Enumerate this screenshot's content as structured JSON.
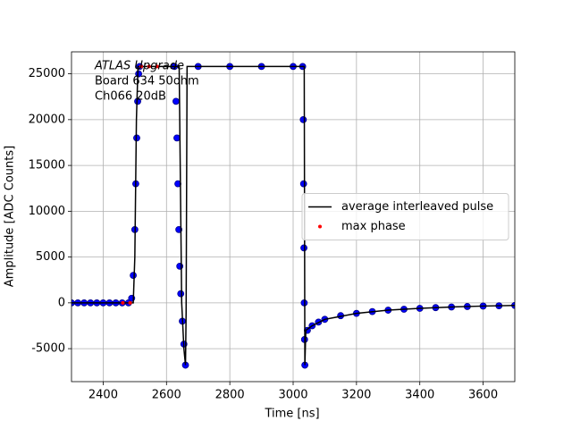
{
  "chart_data": {
    "type": "line",
    "annotation": [
      "ATLAS Upgrade",
      " Board 634 50ohm",
      " Ch066 20dB"
    ],
    "xlabel": "Time [ns]",
    "ylabel": "Amplitude [ADC Counts]",
    "xlim": [
      2300,
      3700
    ],
    "xticks": [
      2400,
      2600,
      2800,
      3000,
      3200,
      3400,
      3600
    ],
    "ylim": [
      -8600,
      27400
    ],
    "yticks": [
      -5000,
      0,
      5000,
      10000,
      15000,
      20000,
      25000
    ],
    "grid": true,
    "legend": "center right",
    "series": [
      {
        "color": "#0000ff",
        "style": "scatter",
        "x": [
          2300,
          2320,
          2340,
          2360,
          2380,
          2400,
          2420,
          2440,
          2460,
          2480,
          2490,
          2495,
          2500,
          2503,
          2506,
          2509,
          2512,
          2515,
          2625,
          2630,
          2633,
          2636,
          2639,
          2642,
          2645,
          2650,
          2655,
          2660,
          2700,
          2800,
          2900,
          3000,
          3030,
          3032,
          3033,
          3034,
          3035,
          3036,
          3037,
          3045,
          3060,
          3080,
          3100,
          3150,
          3200,
          3250,
          3300,
          3350,
          3400,
          3450,
          3500,
          3550,
          3600,
          3650,
          3700
        ],
        "values": [
          0,
          0,
          0,
          0,
          0,
          0,
          0,
          0,
          0,
          0,
          500,
          3000,
          8000,
          13000,
          18000,
          22000,
          25000,
          25800,
          25800,
          22000,
          18000,
          13000,
          8000,
          4000,
          1000,
          -2000,
          -4500,
          -6800,
          25800,
          25800,
          25800,
          25800,
          25800,
          20000,
          13000,
          6000,
          0,
          -4000,
          -6800,
          -3000,
          -2500,
          -2100,
          -1800,
          -1400,
          -1150,
          -950,
          -800,
          -700,
          -600,
          -520,
          -450,
          -400,
          -350,
          -320,
          -280
        ]
      },
      {
        "name": "average interleaved pulse",
        "color": "#000000",
        "style": "line",
        "x": [
          2300,
          2495,
          2500,
          2505,
          2510,
          2640,
          2648,
          2655,
          2660,
          2662,
          2665,
          3035,
          3037,
          3040,
          3060,
          3100,
          3200,
          3300,
          3400,
          3500,
          3600,
          3700
        ],
        "values": [
          0,
          0,
          5000,
          20000,
          25800,
          25800,
          0,
          -5000,
          -6800,
          -1000,
          25800,
          25800,
          -6800,
          -3000,
          -2500,
          -1800,
          -1150,
          -800,
          -600,
          -450,
          -350,
          -280
        ]
      },
      {
        "name": "max phase",
        "color": "#ff0000",
        "style": "dot",
        "x": [
          2462,
          2485,
          2520,
          2545,
          2570
        ],
        "values": [
          0,
          0,
          25800,
          25800,
          25800
        ]
      }
    ]
  }
}
